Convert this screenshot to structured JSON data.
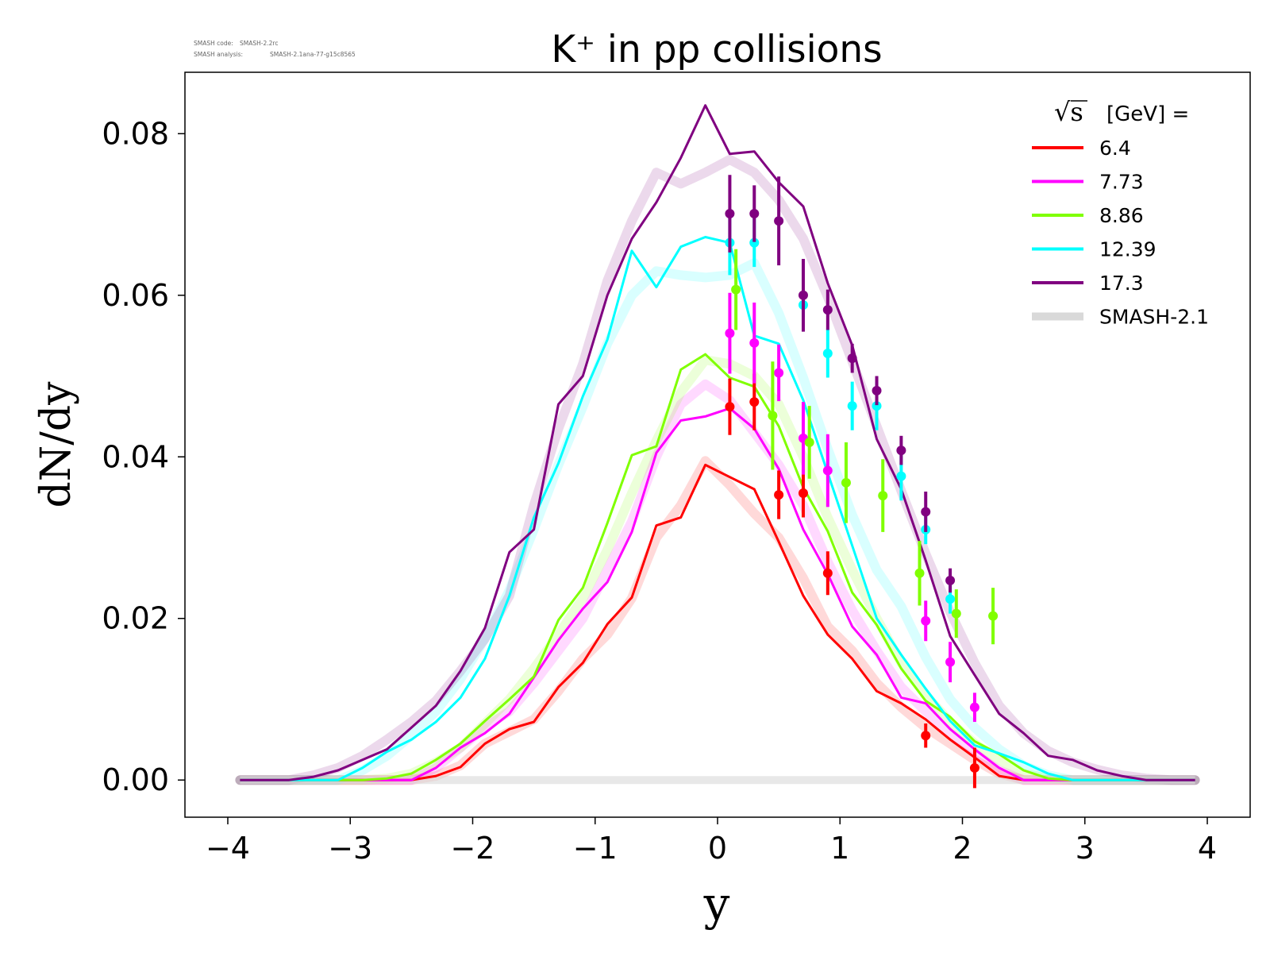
{
  "version_info": {
    "code_label": "SMASH code:",
    "code_value": "SMASH-2.2rc",
    "analysis_label": "SMASH analysis:",
    "analysis_value": "SMASH-2.1ana-77-g15c8565"
  },
  "chart_data": {
    "type": "line",
    "title": "K⁺ in pp collisions",
    "xlabel": "y",
    "ylabel": "dN/dy",
    "xlim": [
      -4.35,
      4.35
    ],
    "ylim": [
      -0.0046,
      0.0876
    ],
    "xticks": [
      -4,
      -3,
      -2,
      -1,
      0,
      1,
      2,
      3,
      4
    ],
    "xtick_labels": [
      "−4",
      "−3",
      "−2",
      "−1",
      "0",
      "1",
      "2",
      "3",
      "4"
    ],
    "yticks": [
      0.0,
      0.02,
      0.04,
      0.06,
      0.08
    ],
    "ytick_labels": [
      "0.00",
      "0.02",
      "0.04",
      "0.06",
      "0.08"
    ],
    "grid": false,
    "legend": {
      "placement": "top-right",
      "title_sqrt": "√s",
      "title_text": "[GeV] ="
    },
    "smash21_band": {
      "name": "SMASH-2.1",
      "color": "#d9d9d9",
      "opacity": 0.3
    },
    "x": [
      -3.9,
      -3.7,
      -3.5,
      -3.3,
      -3.1,
      -2.9,
      -2.7,
      -2.5,
      -2.3,
      -2.1,
      -1.9,
      -1.7,
      -1.5,
      -1.3,
      -1.1,
      -0.9,
      -0.7,
      -0.5,
      -0.3,
      -0.1,
      0.1,
      0.3,
      0.5,
      0.7,
      0.9,
      1.1,
      1.3,
      1.5,
      1.7,
      1.9,
      2.1,
      2.3,
      2.5,
      2.7,
      2.9,
      3.1,
      3.3,
      3.5,
      3.7,
      3.9
    ],
    "series": [
      {
        "name": "6.4",
        "color": "#ff0000",
        "values": [
          0,
          0,
          0,
          0,
          0,
          0,
          0,
          0,
          0.0005,
          0.0016,
          0.0045,
          0.0063,
          0.0072,
          0.0115,
          0.0145,
          0.0193,
          0.0226,
          0.0315,
          0.0325,
          0.039,
          0.0375,
          0.036,
          0.0295,
          0.0228,
          0.018,
          0.015,
          0.011,
          0.0095,
          0.0075,
          0.005,
          0.0028,
          0.0005,
          0,
          0,
          0,
          0,
          0,
          0,
          0,
          0
        ],
        "band": [
          0,
          0,
          0,
          0,
          0,
          0,
          0,
          0,
          0.0005,
          0.0018,
          0.0045,
          0.006,
          0.0075,
          0.011,
          0.015,
          0.018,
          0.0225,
          0.03,
          0.034,
          0.0395,
          0.0365,
          0.033,
          0.03,
          0.025,
          0.019,
          0.016,
          0.012,
          0.009,
          0.0065,
          0.0045,
          0.0025,
          0.0008,
          0,
          0,
          0,
          0,
          0,
          0,
          0,
          0
        ],
        "points_x": [
          0.1,
          0.3,
          0.5,
          0.7,
          0.9,
          1.7,
          2.1
        ],
        "points_y": [
          0.0462,
          0.0468,
          0.0353,
          0.0355,
          0.0256,
          0.0055,
          0.0015
        ],
        "points_err": [
          0.0035,
          0.0035,
          0.003,
          0.003,
          0.0027,
          0.0015,
          0.0025
        ]
      },
      {
        "name": "7.73",
        "color": "#ff00ff",
        "values": [
          0,
          0,
          0,
          0,
          0,
          0,
          0,
          0,
          0.0015,
          0.004,
          0.0058,
          0.0082,
          0.0127,
          0.0173,
          0.0212,
          0.0245,
          0.0307,
          0.0405,
          0.0445,
          0.045,
          0.046,
          0.0435,
          0.0385,
          0.031,
          0.0255,
          0.019,
          0.0155,
          0.0102,
          0.0095,
          0.0063,
          0.0038,
          0.0015,
          0,
          0,
          0,
          0,
          0,
          0,
          0,
          0
        ],
        "band": [
          0,
          0,
          0,
          0,
          0,
          0,
          0,
          0,
          0.0015,
          0.004,
          0.0065,
          0.0085,
          0.012,
          0.016,
          0.02,
          0.026,
          0.032,
          0.04,
          0.0465,
          0.049,
          0.047,
          0.043,
          0.039,
          0.034,
          0.027,
          0.021,
          0.016,
          0.0115,
          0.0085,
          0.0058,
          0.0033,
          0.0012,
          0,
          0,
          0,
          0,
          0,
          0,
          0,
          0
        ],
        "points_x": [
          0.1,
          0.3,
          0.5,
          0.7,
          0.9,
          1.7,
          1.9,
          2.1
        ],
        "points_y": [
          0.0553,
          0.0541,
          0.0504,
          0.0423,
          0.0383,
          0.0197,
          0.0146,
          0.009
        ],
        "points_err": [
          0.005,
          0.005,
          0.0035,
          0.0045,
          0.0045,
          0.0025,
          0.0025,
          0.0018
        ]
      },
      {
        "name": "8.86",
        "color": "#80ff00",
        "values": [
          0,
          0,
          0,
          0,
          0,
          0,
          0.0002,
          0.0008,
          0.0025,
          0.0045,
          0.0073,
          0.01,
          0.0128,
          0.0198,
          0.0238,
          0.0318,
          0.0402,
          0.0413,
          0.0508,
          0.0527,
          0.0498,
          0.0487,
          0.0438,
          0.0362,
          0.0308,
          0.0232,
          0.0192,
          0.0138,
          0.0098,
          0.0078,
          0.0048,
          0.0032,
          0.0012,
          0.0002,
          0,
          0,
          0,
          0,
          0,
          0
        ],
        "band": [
          0,
          0,
          0,
          0,
          0,
          0,
          0.0002,
          0.0008,
          0.0022,
          0.004,
          0.007,
          0.01,
          0.0138,
          0.018,
          0.0225,
          0.0285,
          0.0355,
          0.042,
          0.048,
          0.052,
          0.0515,
          0.05,
          0.0465,
          0.04,
          0.0325,
          0.026,
          0.02,
          0.0145,
          0.0105,
          0.0072,
          0.0045,
          0.0025,
          0.0008,
          0.0002,
          0,
          0,
          0,
          0,
          0,
          0
        ],
        "points_x": [
          0.15,
          0.45,
          0.75,
          1.05,
          1.35,
          1.65,
          1.95,
          2.25
        ],
        "points_y": [
          0.0607,
          0.0451,
          0.0418,
          0.0368,
          0.0352,
          0.0256,
          0.0206,
          0.0203
        ],
        "points_err": [
          0.005,
          0.0067,
          0.0045,
          0.005,
          0.0045,
          0.004,
          0.003,
          0.0035
        ]
      },
      {
        "name": "12.39",
        "color": "#00ffff",
        "values": [
          0,
          0,
          0,
          0,
          0,
          0.0015,
          0.0035,
          0.005,
          0.0072,
          0.0102,
          0.015,
          0.0228,
          0.0325,
          0.0392,
          0.0475,
          0.0545,
          0.0655,
          0.061,
          0.066,
          0.0672,
          0.0665,
          0.055,
          0.054,
          0.047,
          0.038,
          0.029,
          0.02,
          0.0155,
          0.0113,
          0.0073,
          0.0043,
          0.0033,
          0.0022,
          0.0008,
          0,
          0,
          0,
          0,
          0,
          0
        ],
        "band": [
          0,
          0,
          0,
          0,
          0,
          0.0012,
          0.003,
          0.0055,
          0.0085,
          0.0125,
          0.0175,
          0.0235,
          0.031,
          0.039,
          0.0462,
          0.054,
          0.06,
          0.063,
          0.0625,
          0.0622,
          0.0625,
          0.064,
          0.0578,
          0.0498,
          0.041,
          0.0328,
          0.026,
          0.0215,
          0.0152,
          0.01,
          0.0065,
          0.0038,
          0.0018,
          0.0006,
          0,
          0,
          0,
          0,
          0,
          0
        ],
        "points_x": [
          0.1,
          0.3,
          0.7,
          0.9,
          1.1,
          1.3,
          1.5,
          1.7,
          1.9
        ],
        "points_y": [
          0.0665,
          0.0665,
          0.0588,
          0.0528,
          0.0463,
          0.0463,
          0.0376,
          0.031,
          0.0224
        ],
        "points_err": [
          0.004,
          0.003,
          0.0015,
          0.003,
          0.003,
          0.003,
          0.003,
          0.0018,
          0.0018
        ]
      },
      {
        "name": "17.3",
        "color": "#800080",
        "values": [
          0,
          0,
          0,
          0.0004,
          0.0012,
          0.0025,
          0.0038,
          0.0065,
          0.0092,
          0.0135,
          0.0188,
          0.0282,
          0.031,
          0.0465,
          0.05,
          0.06,
          0.067,
          0.0715,
          0.077,
          0.0835,
          0.0775,
          0.0778,
          0.074,
          0.071,
          0.0615,
          0.0538,
          0.0422,
          0.036,
          0.0272,
          0.0178,
          0.013,
          0.0082,
          0.0058,
          0.003,
          0.0025,
          0.0012,
          0.0005,
          0,
          0,
          0
        ],
        "band": [
          0,
          0,
          0,
          0.0006,
          0.0015,
          0.003,
          0.005,
          0.0072,
          0.0098,
          0.0135,
          0.0175,
          0.0228,
          0.034,
          0.0435,
          0.0515,
          0.0618,
          0.0692,
          0.0752,
          0.0738,
          0.0752,
          0.0768,
          0.0752,
          0.0718,
          0.067,
          0.0598,
          0.0518,
          0.0438,
          0.0358,
          0.028,
          0.0208,
          0.0145,
          0.0092,
          0.0058,
          0.0036,
          0.0022,
          0.0013,
          0.0006,
          0.0002,
          0,
          0
        ],
        "points_x": [
          0.1,
          0.3,
          0.5,
          0.7,
          0.9,
          1.1,
          1.3,
          1.5,
          1.7,
          1.9
        ],
        "points_y": [
          0.0701,
          0.0701,
          0.0692,
          0.06,
          0.0582,
          0.0522,
          0.0482,
          0.0408,
          0.0332,
          0.0247
        ],
        "points_err": [
          0.0048,
          0.0035,
          0.0055,
          0.0045,
          0.0025,
          0.0018,
          0.0018,
          0.0018,
          0.0025,
          0.0015
        ]
      }
    ]
  }
}
